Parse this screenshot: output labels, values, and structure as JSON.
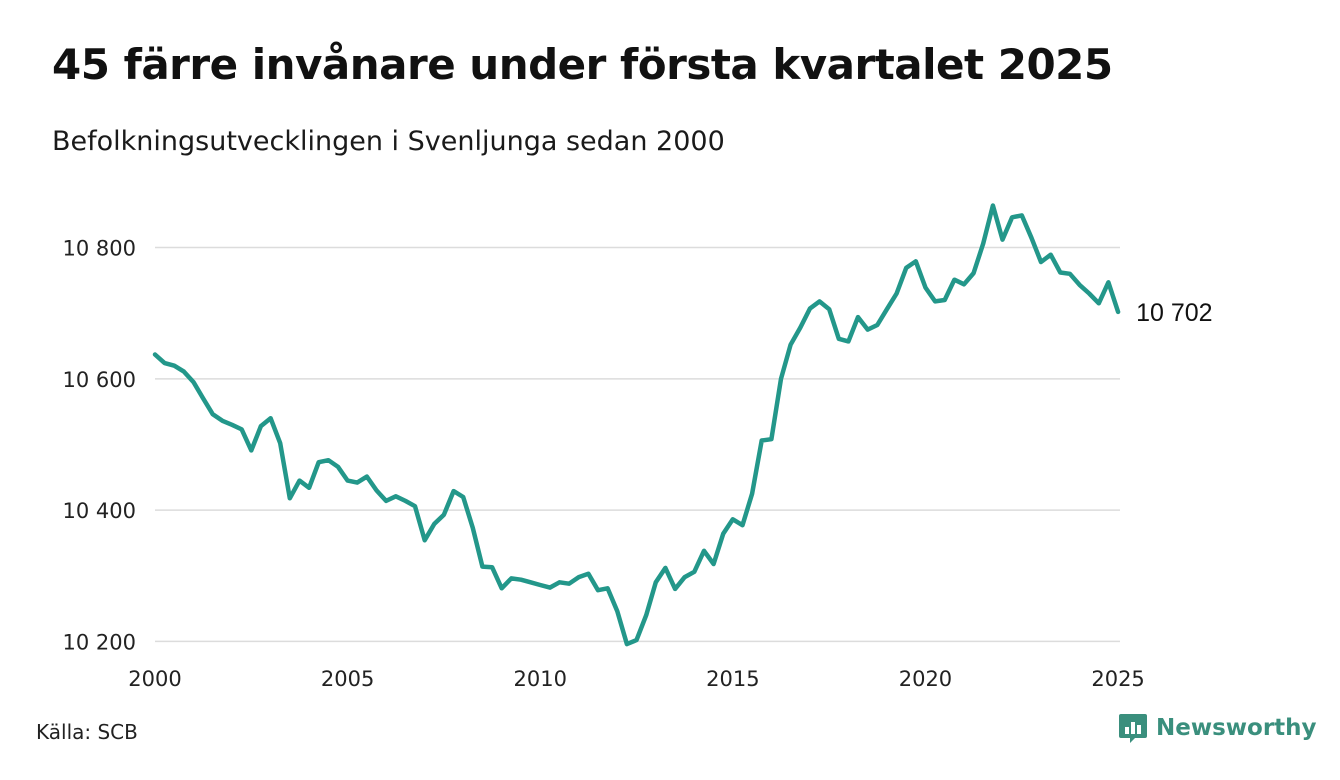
{
  "title": "45 färre invånare under första kvartalet 2025",
  "subtitle": "Befolkningsutvecklingen i Svenljunga sedan 2000",
  "source": "Källa: SCB",
  "brand": {
    "name": "Newsworthy",
    "icon": "newsworthy-logo-icon",
    "color": "#3a8f7d"
  },
  "chart_data": {
    "type": "line",
    "title": "45 färre invånare under första kvartalet 2025",
    "subtitle": "Befolkningsutvecklingen i Svenljunga sedan 2000",
    "xlabel": "",
    "ylabel": "",
    "xlim": [
      2000,
      2025.05
    ],
    "ylim": [
      10190,
      10880
    ],
    "grid": true,
    "line_color": "#23978a",
    "x_ticks": [
      {
        "value": 2000,
        "label": "2000"
      },
      {
        "value": 2005,
        "label": "2005"
      },
      {
        "value": 2010,
        "label": "2010"
      },
      {
        "value": 2015,
        "label": "2015"
      },
      {
        "value": 2020,
        "label": "2020"
      },
      {
        "value": 2025,
        "label": "2025"
      }
    ],
    "y_ticks": [
      {
        "value": 10200,
        "label": "10 200"
      },
      {
        "value": 10400,
        "label": "10 400"
      },
      {
        "value": 10600,
        "label": "10 600"
      },
      {
        "value": 10800,
        "label": "10 800"
      }
    ],
    "end_label": "10 702",
    "series": [
      {
        "x": [
          2000.0,
          2000.25,
          2000.5,
          2000.75,
          2001.0,
          2001.25,
          2001.5,
          2001.75,
          2002.0,
          2002.25,
          2002.5,
          2002.75,
          2003.0,
          2003.25,
          2003.5,
          2003.75,
          2004.0,
          2004.25,
          2004.5,
          2004.75,
          2005.0,
          2005.25,
          2005.5,
          2005.75,
          2006.0,
          2006.25,
          2006.5,
          2006.75,
          2007.0,
          2007.25,
          2007.5,
          2007.75,
          2008.0,
          2008.25,
          2008.5,
          2008.75,
          2009.0,
          2009.25,
          2009.5,
          2009.75,
          2010.0,
          2010.25,
          2010.5,
          2010.75,
          2011.0,
          2011.25,
          2011.5,
          2011.75,
          2012.0,
          2012.25,
          2012.5,
          2012.75,
          2013.0,
          2013.25,
          2013.5,
          2013.75,
          2014.0,
          2014.25,
          2014.5,
          2014.75,
          2015.0,
          2015.25,
          2015.5,
          2015.75,
          2016.0,
          2016.25,
          2016.5,
          2016.75,
          2017.0,
          2017.25,
          2017.5,
          2017.75,
          2018.0,
          2018.25,
          2018.5,
          2018.75,
          2019.0,
          2019.25,
          2019.5,
          2019.75,
          2020.0,
          2020.25,
          2020.5,
          2020.75,
          2021.0,
          2021.25,
          2021.5,
          2021.75,
          2022.0,
          2022.25,
          2022.5,
          2022.75,
          2023.0,
          2023.25,
          2023.5,
          2023.75,
          2024.0,
          2024.25,
          2024.5,
          2024.75,
          2025.0
        ],
        "values": [
          10637,
          10624,
          10620,
          10611,
          10595,
          10570,
          10546,
          10536,
          10530,
          10523,
          10491,
          10528,
          10540,
          10502,
          10418,
          10445,
          10434,
          10473,
          10476,
          10466,
          10445,
          10442,
          10451,
          10430,
          10414,
          10421,
          10414,
          10406,
          10354,
          10379,
          10393,
          10429,
          10420,
          10373,
          10314,
          10313,
          10281,
          10296,
          10294,
          10290,
          10286,
          10282,
          10290,
          10288,
          10298,
          10303,
          10278,
          10281,
          10246,
          10196,
          10202,
          10240,
          10290,
          10312,
          10280,
          10298,
          10306,
          10338,
          10318,
          10364,
          10386,
          10377,
          10425,
          10506,
          10508,
          10600,
          10652,
          10678,
          10707,
          10718,
          10706,
          10661,
          10657,
          10694,
          10675,
          10682,
          10706,
          10730,
          10769,
          10779,
          10739,
          10718,
          10720,
          10751,
          10744,
          10761,
          10806,
          10864,
          10812,
          10846,
          10849,
          10815,
          10778,
          10789,
          10762,
          10760,
          10743,
          10730,
          10715,
          10747,
          10702
        ]
      }
    ]
  }
}
